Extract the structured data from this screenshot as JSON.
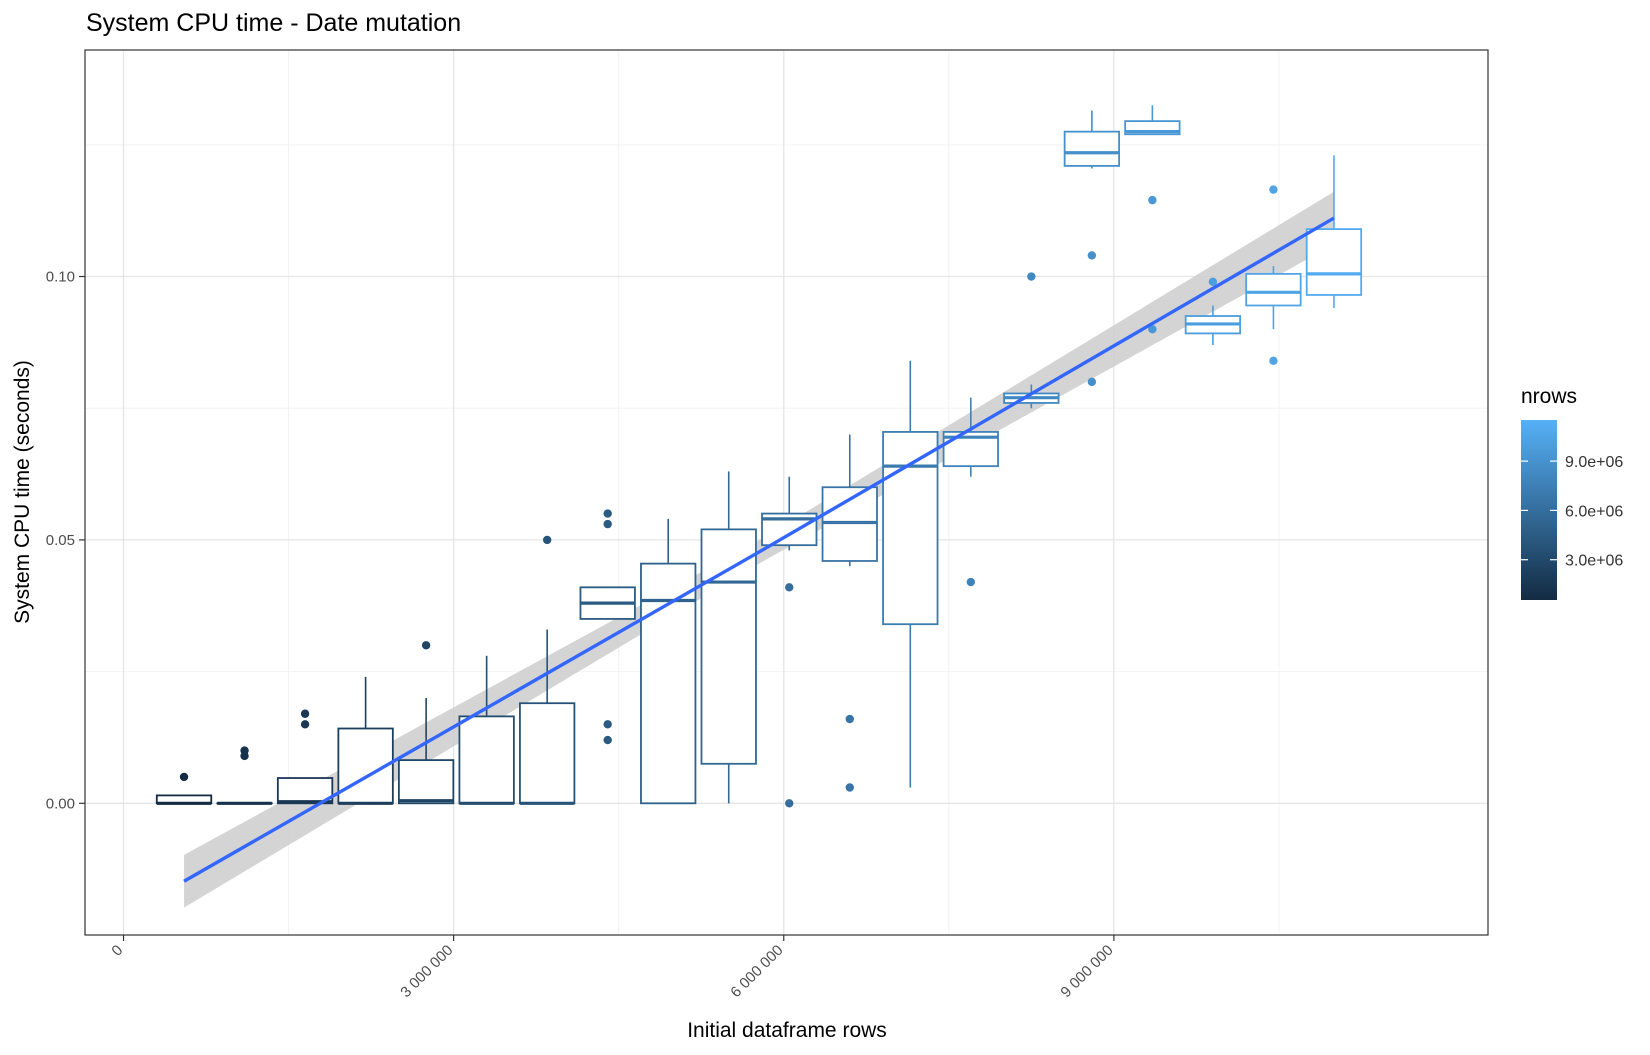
{
  "chart_data": {
    "type": "boxplot",
    "title": "System CPU time - Date mutation",
    "xlabel": "Initial dataframe rows",
    "ylabel": "System CPU time (seconds)",
    "xlim": [
      -350000,
      12400000
    ],
    "ylim": [
      -0.025,
      0.143
    ],
    "x_major_ticks": [
      {
        "value": 0,
        "label": "0"
      },
      {
        "value": 3000000,
        "label": "3 000 000"
      },
      {
        "value": 6000000,
        "label": "6 000 000"
      },
      {
        "value": 9000000,
        "label": "9 000 000"
      }
    ],
    "x_minor_ticks": [
      1500000,
      4500000,
      7500000,
      10500000
    ],
    "y_major_ticks": [
      {
        "value": 0.0,
        "label": "0.00"
      },
      {
        "value": 0.05,
        "label": "0.05"
      },
      {
        "value": 0.1,
        "label": "0.10"
      }
    ],
    "y_minor_ticks": [
      -0.025,
      0.025,
      0.075,
      0.125
    ],
    "grid": true,
    "legend": {
      "title": "nrows",
      "position": "right",
      "type": "colorbar",
      "range": [
        550000,
        11500000
      ],
      "ticks": [
        {
          "value": 3000000,
          "label": "3.0e+06"
        },
        {
          "value": 6000000,
          "label": "6.0e+06"
        },
        {
          "value": 9000000,
          "label": "9.0e+06"
        }
      ],
      "color_low": "#132B43",
      "color_high": "#56B1F7"
    },
    "boxes": [
      {
        "x": 550000,
        "q1": 0.0,
        "median": 0.0,
        "q3": 0.0015,
        "whisker_low": 0.0,
        "whisker_high": 0.0015,
        "outliers": [
          0.005
        ]
      },
      {
        "x": 1100000,
        "q1": 0.0,
        "median": 0.0,
        "q3": 0.0,
        "whisker_low": 0.0,
        "whisker_high": 0.0,
        "outliers": [
          0.009,
          0.01
        ]
      },
      {
        "x": 1650000,
        "q1": 0.0,
        "median": 0.0003,
        "q3": 0.0048,
        "whisker_low": 0.0,
        "whisker_high": 0.0048,
        "outliers": [
          0.015,
          0.017
        ]
      },
      {
        "x": 2200000,
        "q1": 0.0,
        "median": 0.0,
        "q3": 0.0142,
        "whisker_low": 0.0,
        "whisker_high": 0.024,
        "outliers": []
      },
      {
        "x": 2750000,
        "q1": 0.0,
        "median": 0.0005,
        "q3": 0.0082,
        "whisker_low": 0.0,
        "whisker_high": 0.02,
        "outliers": [
          0.03
        ]
      },
      {
        "x": 3300000,
        "q1": 0.0,
        "median": 0.0,
        "q3": 0.0165,
        "whisker_low": 0.0,
        "whisker_high": 0.028,
        "outliers": []
      },
      {
        "x": 3850000,
        "q1": 0.0,
        "median": 0.0,
        "q3": 0.019,
        "whisker_low": 0.0,
        "whisker_high": 0.033,
        "outliers": [
          0.05
        ]
      },
      {
        "x": 4400000,
        "q1": 0.035,
        "median": 0.038,
        "q3": 0.041,
        "whisker_low": 0.035,
        "whisker_high": 0.041,
        "outliers": [
          0.012,
          0.015,
          0.053,
          0.055
        ]
      },
      {
        "x": 4950000,
        "q1": 0.0,
        "median": 0.0385,
        "q3": 0.0455,
        "whisker_low": 0.0,
        "whisker_high": 0.054,
        "outliers": []
      },
      {
        "x": 5500000,
        "q1": 0.0075,
        "median": 0.042,
        "q3": 0.052,
        "whisker_low": 0.0,
        "whisker_high": 0.063,
        "outliers": []
      },
      {
        "x": 6050000,
        "q1": 0.049,
        "median": 0.054,
        "q3": 0.055,
        "whisker_low": 0.048,
        "whisker_high": 0.062,
        "outliers": [
          0.0,
          0.041
        ]
      },
      {
        "x": 6600000,
        "q1": 0.046,
        "median": 0.0533,
        "q3": 0.06,
        "whisker_low": 0.045,
        "whisker_high": 0.07,
        "outliers": [
          0.003,
          0.016
        ]
      },
      {
        "x": 7150000,
        "q1": 0.034,
        "median": 0.064,
        "q3": 0.0705,
        "whisker_low": 0.003,
        "whisker_high": 0.084,
        "outliers": []
      },
      {
        "x": 7700000,
        "q1": 0.064,
        "median": 0.0695,
        "q3": 0.0705,
        "whisker_low": 0.062,
        "whisker_high": 0.077,
        "outliers": [
          0.042
        ]
      },
      {
        "x": 8250000,
        "q1": 0.076,
        "median": 0.077,
        "q3": 0.0778,
        "whisker_low": 0.075,
        "whisker_high": 0.0795,
        "outliers": [
          0.1
        ]
      },
      {
        "x": 8800000,
        "q1": 0.121,
        "median": 0.1235,
        "q3": 0.1275,
        "whisker_low": 0.1205,
        "whisker_high": 0.1315,
        "outliers": [
          0.08,
          0.104
        ]
      },
      {
        "x": 9350000,
        "q1": 0.127,
        "median": 0.1275,
        "q3": 0.1295,
        "whisker_low": 0.127,
        "whisker_high": 0.1325,
        "outliers": [
          0.09,
          0.1145
        ]
      },
      {
        "x": 9900000,
        "q1": 0.0892,
        "median": 0.091,
        "q3": 0.0925,
        "whisker_low": 0.087,
        "whisker_high": 0.0945,
        "outliers": [
          0.099
        ]
      },
      {
        "x": 10450000,
        "q1": 0.0945,
        "median": 0.097,
        "q3": 0.1005,
        "whisker_low": 0.09,
        "whisker_high": 0.102,
        "outliers": [
          0.084,
          0.1165
        ]
      },
      {
        "x": 11000000,
        "q1": 0.0965,
        "median": 0.1005,
        "q3": 0.109,
        "whisker_low": 0.094,
        "whisker_high": 0.123,
        "outliers": []
      }
    ],
    "trend_line": {
      "method": "linear",
      "color": "#3366FF",
      "band_color": "#cccccc",
      "points": [
        {
          "x": 550000,
          "y": -0.0148,
          "lower": -0.0198,
          "upper": -0.0098
        },
        {
          "x": 5800000,
          "y": 0.048,
          "lower": 0.0458,
          "upper": 0.0502
        },
        {
          "x": 11000000,
          "y": 0.1111,
          "lower": 0.1061,
          "upper": 0.1161
        }
      ]
    }
  }
}
